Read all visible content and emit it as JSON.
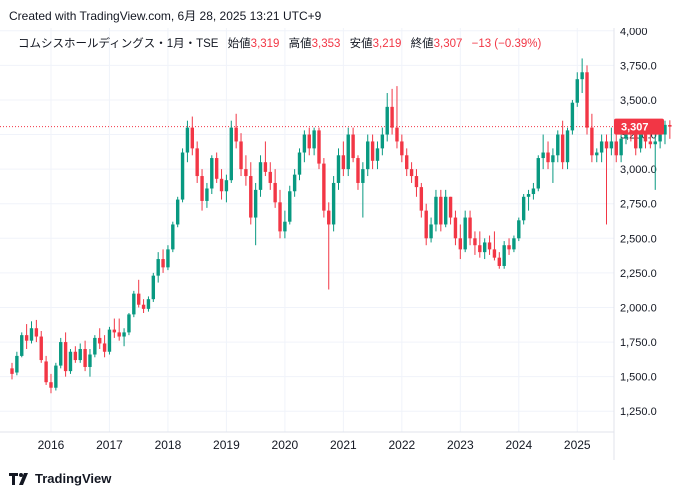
{
  "header": {
    "created_text": "Created with TradingView.com, 6月 28, 2025 13:21 UTC+9"
  },
  "legend": {
    "symbol": "コムシスホールディングス・1月・TSE",
    "open_label": "始値",
    "open_value": "3,319",
    "high_label": "高値",
    "high_value": "3,353",
    "low_label": "安値",
    "low_value": "3,219",
    "close_label": "終値",
    "close_value": "3,307",
    "change": "−13 (−0.39%)"
  },
  "footer": {
    "brand": "TradingView",
    "logo_icon": "tradingview-logo-icon"
  },
  "colors": {
    "up": "#089981",
    "down": "#f23645",
    "grid": "#f0f3fa",
    "price_line": "#f23645"
  },
  "chart_data": {
    "type": "candlestick",
    "interval": "1M",
    "x_tick_labels": [
      "2016",
      "2017",
      "2018",
      "2019",
      "2020",
      "2021",
      "2022",
      "2023",
      "2024",
      "2025"
    ],
    "y_tick_labels": [
      "1,250.0",
      "1,500.0",
      "1,750.0",
      "2,000.0",
      "2,250.0",
      "2,500.0",
      "2,750.0",
      "3,000.0",
      "3,250.0",
      "3,500.0",
      "3,750.0",
      "4,000"
    ],
    "ylim": [
      1100,
      4020
    ],
    "grid": true,
    "last_price_label": "3,307",
    "last_price": 3307,
    "start": "2015-05",
    "ohlc": [
      [
        1560,
        1600,
        1480,
        1520
      ],
      [
        1530,
        1680,
        1510,
        1650
      ],
      [
        1650,
        1820,
        1640,
        1800
      ],
      [
        1800,
        1880,
        1700,
        1760
      ],
      [
        1760,
        1900,
        1740,
        1850
      ],
      [
        1850,
        1910,
        1750,
        1790
      ],
      [
        1790,
        1830,
        1600,
        1620
      ],
      [
        1610,
        1650,
        1440,
        1460
      ],
      [
        1460,
        1520,
        1380,
        1420
      ],
      [
        1420,
        1600,
        1400,
        1580
      ],
      [
        1580,
        1780,
        1560,
        1750
      ],
      [
        1750,
        1820,
        1500,
        1540
      ],
      [
        1540,
        1700,
        1520,
        1680
      ],
      [
        1680,
        1720,
        1600,
        1620
      ],
      [
        1620,
        1740,
        1600,
        1700
      ],
      [
        1700,
        1760,
        1540,
        1570
      ],
      [
        1570,
        1700,
        1500,
        1660
      ],
      [
        1660,
        1800,
        1640,
        1780
      ],
      [
        1780,
        1850,
        1700,
        1740
      ],
      [
        1740,
        1800,
        1640,
        1680
      ],
      [
        1680,
        1860,
        1660,
        1840
      ],
      [
        1840,
        1920,
        1780,
        1820
      ],
      [
        1820,
        1920,
        1760,
        1790
      ],
      [
        1790,
        1850,
        1720,
        1820
      ],
      [
        1820,
        1960,
        1800,
        1950
      ],
      [
        1950,
        2120,
        1930,
        2100
      ],
      [
        2100,
        2200,
        2000,
        2020
      ],
      [
        2020,
        2060,
        1960,
        1990
      ],
      [
        1990,
        2080,
        1970,
        2060
      ],
      [
        2060,
        2250,
        2040,
        2230
      ],
      [
        2230,
        2400,
        2180,
        2350
      ],
      [
        2350,
        2420,
        2250,
        2290
      ],
      [
        2290,
        2450,
        2270,
        2420
      ],
      [
        2420,
        2620,
        2400,
        2600
      ],
      [
        2600,
        2800,
        2580,
        2780
      ],
      [
        2780,
        3150,
        2760,
        3120
      ],
      [
        3120,
        3350,
        3050,
        3300
      ],
      [
        3300,
        3380,
        3100,
        3150
      ],
      [
        3150,
        3200,
        2900,
        2950
      ],
      [
        2950,
        3000,
        2700,
        2770
      ],
      [
        2770,
        2900,
        2720,
        2860
      ],
      [
        2860,
        3100,
        2820,
        3080
      ],
      [
        3080,
        3120,
        2900,
        2930
      ],
      [
        2930,
        3000,
        2780,
        2840
      ],
      [
        2840,
        2960,
        2760,
        2920
      ],
      [
        2920,
        3350,
        2900,
        3300
      ],
      [
        3300,
        3400,
        3150,
        3200
      ],
      [
        3200,
        3260,
        2950,
        3000
      ],
      [
        3000,
        3100,
        2880,
        2950
      ],
      [
        2950,
        3050,
        2600,
        2650
      ],
      [
        2650,
        2900,
        2450,
        2850
      ],
      [
        2850,
        3100,
        2800,
        3050
      ],
      [
        3050,
        3200,
        2950,
        2980
      ],
      [
        2980,
        3050,
        2850,
        2900
      ],
      [
        2900,
        3000,
        2720,
        2760
      ],
      [
        2760,
        2850,
        2500,
        2550
      ],
      [
        2550,
        2700,
        2500,
        2620
      ],
      [
        2620,
        2880,
        2600,
        2840
      ],
      [
        2840,
        3000,
        2800,
        2960
      ],
      [
        2960,
        3150,
        2920,
        3120
      ],
      [
        3120,
        3280,
        3050,
        3250
      ],
      [
        3250,
        3300,
        3100,
        3150
      ],
      [
        3150,
        3300,
        3100,
        3280
      ],
      [
        3280,
        3300,
        3000,
        3040
      ],
      [
        3040,
        3080,
        2650,
        2700
      ],
      [
        2700,
        2760,
        2130,
        2600
      ],
      [
        2600,
        2950,
        2550,
        2900
      ],
      [
        2900,
        3150,
        2850,
        3100
      ],
      [
        3100,
        3200,
        2950,
        3000
      ],
      [
        3000,
        3300,
        2950,
        3250
      ],
      [
        3250,
        3300,
        3050,
        3080
      ],
      [
        3080,
        3100,
        2850,
        2900
      ],
      [
        2900,
        3050,
        2650,
        3000
      ],
      [
        3000,
        3250,
        2950,
        3200
      ],
      [
        3200,
        3250,
        3000,
        3060
      ],
      [
        3060,
        3200,
        3000,
        3150
      ],
      [
        3150,
        3300,
        3100,
        3250
      ],
      [
        3250,
        3550,
        3200,
        3450
      ],
      [
        3450,
        3580,
        3250,
        3300
      ],
      [
        3300,
        3600,
        3150,
        3200
      ],
      [
        3200,
        3250,
        3050,
        3100
      ],
      [
        3100,
        3150,
        2950,
        3000
      ],
      [
        3000,
        3050,
        2900,
        2950
      ],
      [
        2950,
        3000,
        2800,
        2870
      ],
      [
        2870,
        2900,
        2650,
        2700
      ],
      [
        2700,
        2750,
        2450,
        2500
      ],
      [
        2500,
        2650,
        2470,
        2600
      ],
      [
        2600,
        2850,
        2550,
        2800
      ],
      [
        2800,
        2850,
        2550,
        2600
      ],
      [
        2600,
        2850,
        2580,
        2800
      ],
      [
        2800,
        2800,
        2600,
        2650
      ],
      [
        2650,
        2700,
        2450,
        2500
      ],
      [
        2500,
        2600,
        2350,
        2420
      ],
      [
        2420,
        2700,
        2400,
        2650
      ],
      [
        2650,
        2700,
        2450,
        2500
      ],
      [
        2500,
        2550,
        2380,
        2450
      ],
      [
        2450,
        2550,
        2360,
        2400
      ],
      [
        2400,
        2500,
        2350,
        2470
      ],
      [
        2470,
        2520,
        2380,
        2420
      ],
      [
        2420,
        2550,
        2340,
        2360
      ],
      [
        2360,
        2400,
        2280,
        2300
      ],
      [
        2300,
        2480,
        2280,
        2450
      ],
      [
        2450,
        2500,
        2380,
        2420
      ],
      [
        2420,
        2520,
        2400,
        2500
      ],
      [
        2500,
        2650,
        2480,
        2630
      ],
      [
        2630,
        2820,
        2600,
        2800
      ],
      [
        2800,
        2850,
        2700,
        2820
      ],
      [
        2820,
        2900,
        2780,
        2860
      ],
      [
        2860,
        3100,
        2840,
        3080
      ],
      [
        3080,
        3250,
        3000,
        3120
      ],
      [
        3120,
        3200,
        3000,
        3050
      ],
      [
        3050,
        3150,
        2900,
        3100
      ],
      [
        3100,
        3280,
        3050,
        3250
      ],
      [
        3250,
        3350,
        3000,
        3050
      ],
      [
        3050,
        3300,
        3000,
        3280
      ],
      [
        3280,
        3500,
        3250,
        3480
      ],
      [
        3480,
        3700,
        3450,
        3650
      ],
      [
        3650,
        3800,
        3550,
        3700
      ],
      [
        3700,
        3750,
        3250,
        3300
      ],
      [
        3300,
        3400,
        3050,
        3100
      ],
      [
        3100,
        3150,
        3050,
        3120
      ],
      [
        3120,
        3250,
        3050,
        3200
      ],
      [
        3200,
        3250,
        2600,
        3150
      ],
      [
        3150,
        3300,
        3100,
        3200
      ],
      [
        3200,
        3250,
        3050,
        3100
      ],
      [
        3100,
        3250,
        3050,
        3220
      ],
      [
        3220,
        3350,
        3180,
        3300
      ],
      [
        3300,
        3330,
        3200,
        3250
      ],
      [
        3250,
        3300,
        3100,
        3150
      ],
      [
        3150,
        3350,
        3120,
        3280
      ],
      [
        3280,
        3350,
        3150,
        3200
      ],
      [
        3200,
        3250,
        3150,
        3180
      ],
      [
        3180,
        3250,
        2850,
        3200
      ],
      [
        3200,
        3300,
        3150,
        3250
      ],
      [
        3250,
        3350,
        3180,
        3320
      ],
      [
        3319,
        3353,
        3219,
        3307
      ]
    ]
  }
}
